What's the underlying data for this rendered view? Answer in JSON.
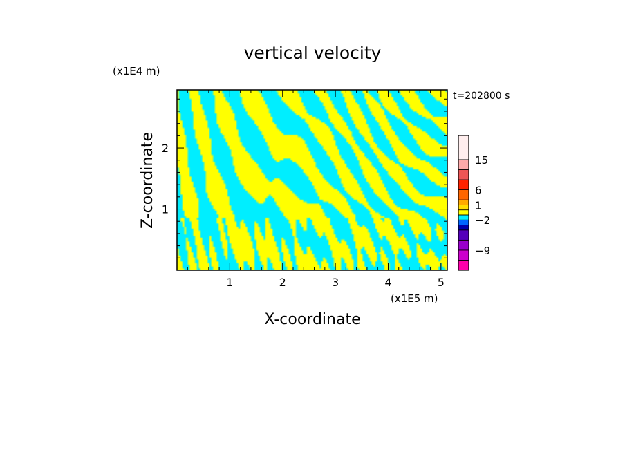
{
  "chart_data": {
    "type": "heatmap",
    "title": "vertical velocity",
    "xlabel": "X-coordinate",
    "ylabel": "Z-coordinate",
    "x_unit": "(x1E5 m)",
    "y_unit": "(x1E4 m)",
    "time_label": "t=202800 s",
    "xlim": [
      0,
      5.12
    ],
    "ylim": [
      0,
      2.95
    ],
    "x_ticks": [
      {
        "value": 1,
        "label": "1"
      },
      {
        "value": 2,
        "label": "2"
      },
      {
        "value": 3,
        "label": "3"
      },
      {
        "value": 4,
        "label": "4"
      },
      {
        "value": 5,
        "label": "5"
      }
    ],
    "y_ticks": [
      {
        "value": 1,
        "label": "1"
      },
      {
        "value": 2,
        "label": "2"
      }
    ],
    "colors": {
      "positive": "#ffff00",
      "negative": "#00eeff"
    },
    "colorbar": {
      "levels": [
        {
          "color": "#ff00aa"
        },
        {
          "color": "#cc00cc"
        },
        {
          "color": "#9900cc"
        },
        {
          "color": "#5500bb"
        },
        {
          "color": "#0000aa"
        },
        {
          "color": "#0066ff"
        },
        {
          "color": "#00eeff"
        },
        {
          "color": "#ffff00"
        },
        {
          "color": "#ffdd00"
        },
        {
          "color": "#ffaa00"
        },
        {
          "color": "#ff6600"
        },
        {
          "color": "#ff2200"
        },
        {
          "color": "#ee5555"
        },
        {
          "color": "#ffaaaa"
        },
        {
          "color": "#ffeeee"
        }
      ],
      "labels": [
        {
          "value": -9,
          "text": "−9",
          "level_index": 1
        },
        {
          "value": -2,
          "text": "−2",
          "level_index": 5
        },
        {
          "value": 1,
          "text": "1",
          "level_index": 8
        },
        {
          "value": 6,
          "text": "6",
          "level_index": 10
        },
        {
          "value": 15,
          "text": "15",
          "level_index": 13
        }
      ]
    }
  }
}
